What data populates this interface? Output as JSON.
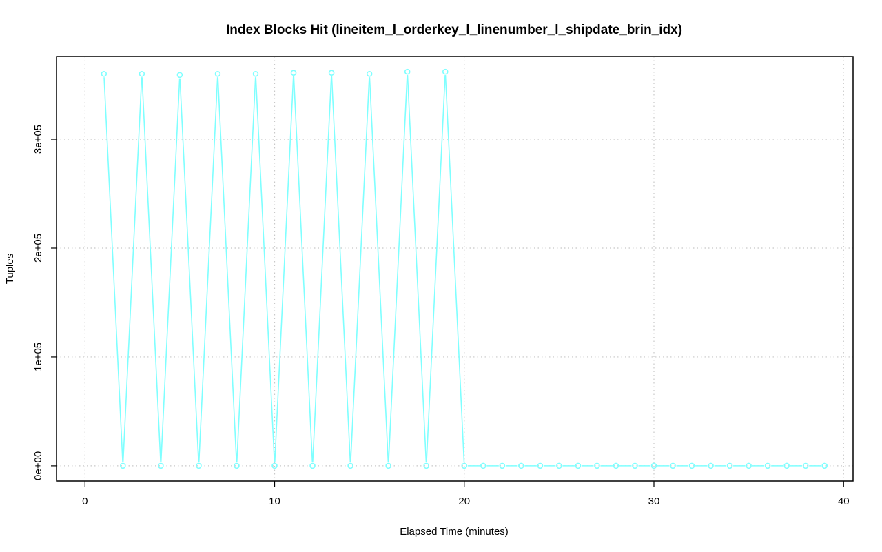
{
  "chart_data": {
    "type": "line",
    "title": "Index Blocks Hit (lineitem_l_orderkey_l_linenumber_l_shipdate_brin_idx)",
    "xlabel": "Elapsed Time (minutes)",
    "ylabel": "Tuples",
    "xlim": [
      -1.5,
      40.5
    ],
    "ylim": [
      -14000,
      376000
    ],
    "x_ticks": [
      0,
      10,
      20,
      30,
      40
    ],
    "x_tick_labels": [
      "0",
      "10",
      "20",
      "30",
      "40"
    ],
    "y_ticks": [
      0,
      100000,
      200000,
      300000
    ],
    "y_tick_labels": [
      "0e+00",
      "1e+05",
      "2e+05",
      "3e+05"
    ],
    "grid": true,
    "series": [
      {
        "color": "#7FFFFF",
        "x": [
          1,
          2,
          3,
          4,
          5,
          6,
          7,
          8,
          9,
          10,
          11,
          12,
          13,
          14,
          15,
          16,
          17,
          18,
          19,
          20,
          21,
          22,
          23,
          24,
          25,
          26,
          27,
          28,
          29,
          30,
          31,
          32,
          33,
          34,
          35,
          36,
          37,
          38,
          39
        ],
        "y": [
          360000,
          0,
          360000,
          0,
          359000,
          0,
          360000,
          0,
          360000,
          0,
          361000,
          0,
          361000,
          0,
          360000,
          0,
          362000,
          0,
          362000,
          0,
          0,
          0,
          0,
          0,
          0,
          0,
          0,
          0,
          0,
          0,
          0,
          0,
          0,
          0,
          0,
          0,
          0,
          0,
          0
        ]
      }
    ]
  }
}
